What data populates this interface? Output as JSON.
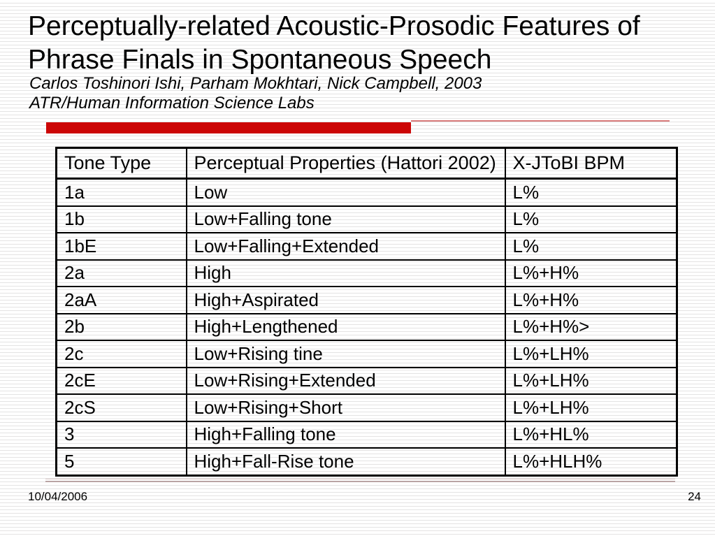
{
  "slide": {
    "title_lines": [
      "Perceptually-related Acoustic-Prosodic Features of",
      "Phrase Finals in Spontaneous Speech"
    ],
    "subtitle_lines": [
      "Carlos Toshinori Ishi, Parham Mokhtari, Nick Campbell, 2003",
      "ATR/Human Information Science Labs"
    ]
  },
  "table": {
    "columns": [
      "Tone Type",
      "Perceptual Properties (Hattori 2002)",
      "X-JToBI BPM"
    ],
    "rows": [
      [
        "1a",
        "Low",
        "L%"
      ],
      [
        "1b",
        "Low+Falling tone",
        "L%"
      ],
      [
        "1bE",
        "Low+Falling+Extended",
        "L%"
      ],
      [
        "2a",
        "High",
        "L%+H%"
      ],
      [
        "2aA",
        "High+Aspirated",
        "L%+H%"
      ],
      [
        "2b",
        "High+Lengthened",
        "L%+H%>"
      ],
      [
        "2c",
        "Low+Rising tine",
        "L%+LH%"
      ],
      [
        "2cE",
        "Low+Rising+Extended",
        "L%+LH%"
      ],
      [
        "2cS",
        "Low+Rising+Short",
        "L%+LH%"
      ],
      [
        "3",
        "High+Falling tone",
        "L%+HL%"
      ],
      [
        "5",
        "High+Fall-Rise tone",
        "L%+HLH%"
      ]
    ]
  },
  "footer": {
    "date": "10/04/2006",
    "page_number": "24"
  },
  "colors": {
    "accent_red": "#cc0606",
    "accent_pink_line": "#d97b7b",
    "background_stripe": "#e4e3e3",
    "footer_rule": "#b9a4a4",
    "table_border": "#000000",
    "text": "#000000"
  }
}
